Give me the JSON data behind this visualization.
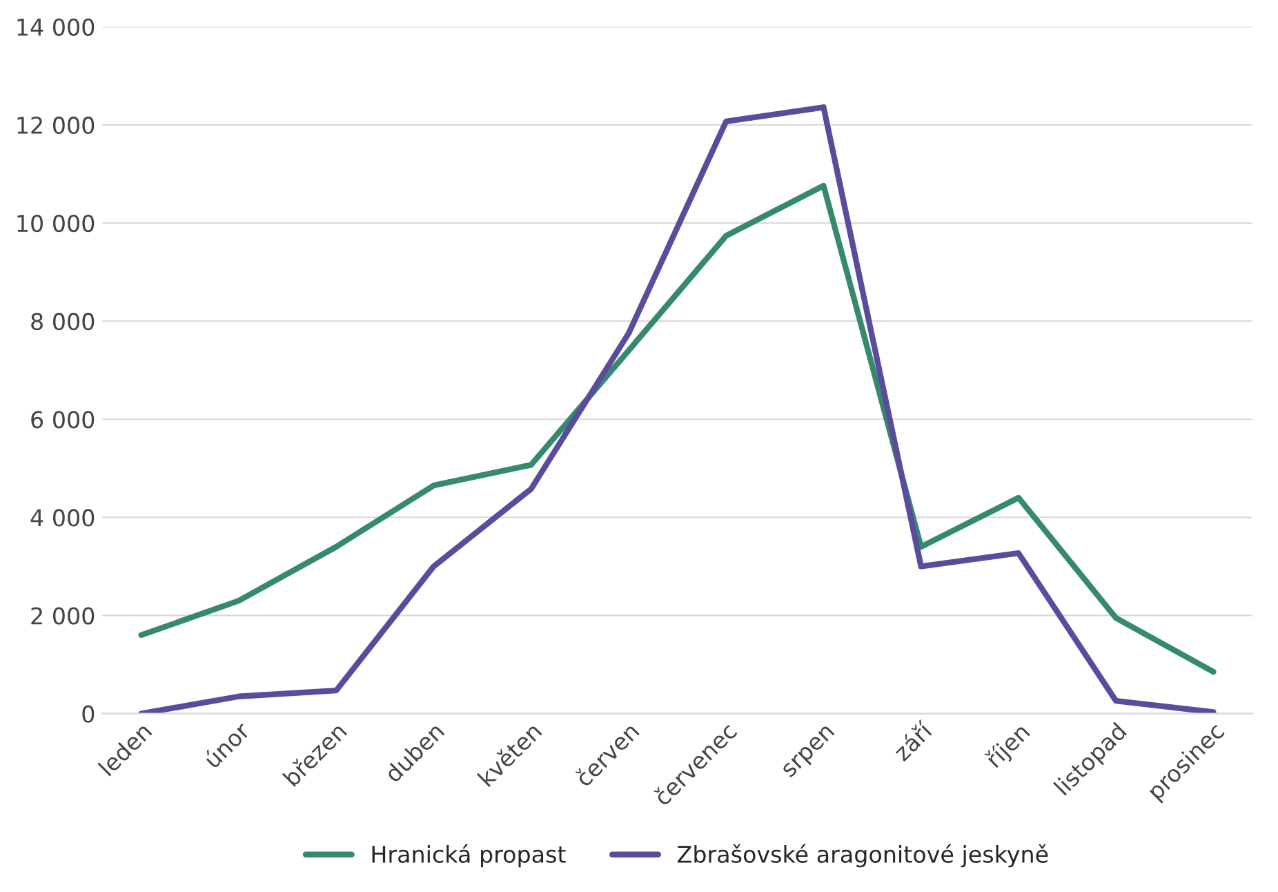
{
  "chart_data": {
    "type": "line",
    "categories": [
      "leden",
      "únor",
      "březen",
      "duben",
      "květen",
      "červen",
      "červenec",
      "srpen",
      "září",
      "říjen",
      "listopad",
      "prosinec"
    ],
    "series": [
      {
        "name": "Hranická propast",
        "color": "#35896f",
        "values": [
          1600,
          2300,
          3400,
          4650,
          5070,
          7400,
          9740,
          10760,
          3400,
          4400,
          1950,
          850
        ]
      },
      {
        "name": "Zbrašovské aragonitové jeskyně",
        "color": "#5a4c9c",
        "values": [
          0,
          350,
          470,
          3000,
          4580,
          7750,
          12070,
          12360,
          3000,
          3270,
          260,
          30
        ]
      }
    ],
    "ylim": [
      0,
      14000
    ],
    "yticks": [
      0,
      {
        "value": 2000,
        "label": "2 000"
      },
      {
        "value": 4000,
        "label": "4 000"
      },
      {
        "value": 6000,
        "label": "6 000"
      },
      {
        "value": 8000,
        "label": "8 000"
      },
      {
        "value": 10000,
        "label": "10 000"
      },
      {
        "value": 12000,
        "label": "12 000"
      },
      {
        "value": 14000,
        "label": "14 000"
      }
    ],
    "grid": "y",
    "legend": "bottom",
    "marker": "none",
    "line_style": "solid"
  }
}
